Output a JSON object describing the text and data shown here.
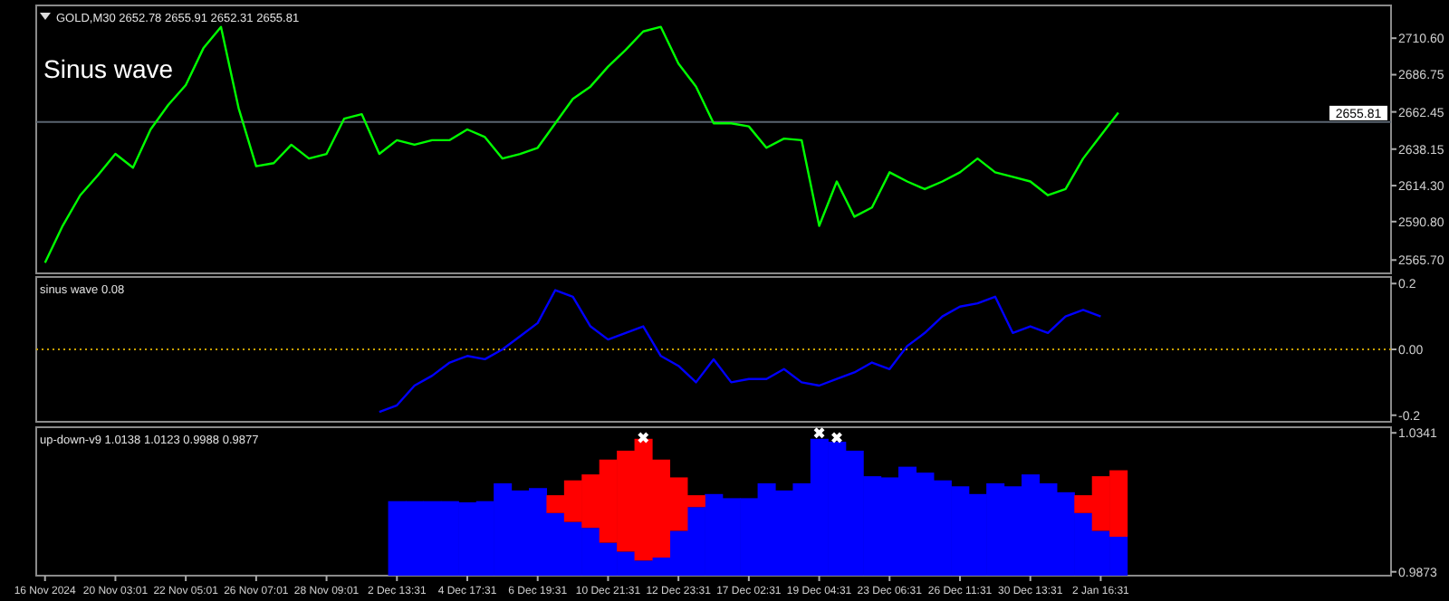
{
  "chart_data": [
    {
      "type": "line",
      "title": "GOLD,M30 2652.78 2655.91 2652.31 2655.81",
      "annotations": [
        "Sinus wave"
      ],
      "tick_labels": "y",
      "categories": [
        null,
        null,
        null,
        null,
        null,
        null,
        null,
        null,
        null,
        null,
        null,
        null,
        null,
        null,
        null,
        null,
        null,
        null,
        null,
        null,
        null,
        null,
        null,
        null,
        null,
        null,
        null,
        null,
        null,
        null,
        null,
        null,
        null,
        null,
        null,
        null,
        null,
        null,
        null,
        null,
        null,
        null,
        null,
        null,
        null,
        null,
        null,
        null,
        null,
        null,
        null,
        null,
        null,
        null,
        null,
        null,
        null,
        null,
        null,
        null,
        null,
        null,
        null,
        null,
        null,
        null,
        null,
        null,
        null,
        null,
        null,
        null,
        null,
        null,
        null,
        null,
        null
      ],
      "series": [
        {
          "color": "#00ff00",
          "values": [
            2564,
            2588,
            2608,
            2621,
            2635,
            2626,
            2651,
            2667,
            2680,
            2704,
            2718,
            2665,
            2627,
            2629,
            2641,
            2632,
            2635,
            2658,
            2661,
            2635,
            2644,
            2641,
            2644,
            2644,
            2651,
            2646,
            2632,
            2635,
            2639,
            2655,
            2671,
            2679,
            2692,
            2703,
            2715,
            2718,
            2694,
            2679,
            2655,
            2655,
            2653,
            2639,
            2645,
            2644,
            2588,
            2617,
            2594,
            2600,
            2623,
            2617,
            2612,
            2617,
            2623,
            2632,
            2623,
            2620,
            2617,
            2608,
            2612,
            2632,
            2647,
            2662,
            null,
            null,
            null,
            null,
            null,
            null,
            null,
            null,
            null,
            null,
            null,
            null,
            null,
            null,
            null
          ]
        }
      ],
      "ylim": [
        2557,
        2732
      ],
      "yticks": [
        {
          "value": 2710.6,
          "label": "2710.60"
        },
        {
          "value": 2686.75,
          "label": "2686.75"
        },
        {
          "value": 2662.45,
          "label": "2662.45"
        },
        {
          "value": 2638.15,
          "label": "2638.15"
        },
        {
          "value": 2614.3,
          "label": "2614.30"
        },
        {
          "value": 2590.8,
          "label": "2590.80"
        },
        {
          "value": 2565.7,
          "label": "2565.70"
        }
      ],
      "ref_lines": [
        {
          "axis": "y",
          "value": 2655.81,
          "label": "2655.81",
          "color": "#5a6470"
        }
      ]
    },
    {
      "type": "line",
      "title": "sinus wave 0.08",
      "tick_labels": "y",
      "categories": [
        null,
        null,
        null,
        null,
        null,
        null,
        null,
        null,
        null,
        null,
        null,
        null,
        null,
        null,
        null,
        null,
        null,
        null,
        null,
        null,
        null,
        null,
        null,
        null,
        null,
        null,
        null,
        null,
        null,
        null,
        null,
        null,
        null,
        null,
        null,
        null,
        null,
        null,
        null,
        null,
        null,
        null,
        null,
        null,
        null,
        null,
        null,
        null,
        null,
        null,
        null,
        null,
        null,
        null,
        null,
        null,
        null,
        null,
        null,
        null,
        null,
        null,
        null,
        null,
        null,
        null,
        null,
        null,
        null,
        null,
        null,
        null,
        null,
        null,
        null,
        null,
        null
      ],
      "series": [
        {
          "color": "#0000ff",
          "values": [
            null,
            null,
            null,
            null,
            null,
            null,
            null,
            null,
            null,
            null,
            null,
            null,
            null,
            null,
            null,
            null,
            null,
            null,
            null,
            -0.19,
            -0.17,
            -0.11,
            -0.08,
            -0.04,
            -0.02,
            -0.03,
            0.0,
            0.04,
            0.08,
            0.18,
            0.16,
            0.07,
            0.03,
            0.05,
            0.07,
            -0.02,
            -0.05,
            -0.1,
            -0.03,
            -0.1,
            -0.09,
            -0.09,
            -0.06,
            -0.1,
            -0.11,
            -0.09,
            -0.07,
            -0.04,
            -0.06,
            0.01,
            0.05,
            0.1,
            0.13,
            0.14,
            0.16,
            0.05,
            0.07,
            0.05,
            0.1,
            0.12,
            0.1,
            null,
            null,
            null,
            null,
            null,
            null,
            null,
            null,
            null,
            null,
            null,
            null,
            null,
            null,
            null,
            null
          ]
        }
      ],
      "ylim": [
        -0.22,
        0.22
      ],
      "yticks": [
        0.2,
        {
          "value": 0,
          "label": "0.00"
        },
        -0.2
      ],
      "ref_lines": [
        {
          "axis": "y",
          "value": 0,
          "color": "#c8a000",
          "line_style": "dotted"
        }
      ]
    },
    {
      "type": "bar",
      "title": "up-down-v9 1.0138 1.0123 0.9988 0.9877",
      "categories": [
        "16 Nov 2024",
        null,
        null,
        null,
        "20 Nov 03:01",
        null,
        null,
        null,
        "22 Nov 05:01",
        null,
        null,
        null,
        "26 Nov 07:01",
        null,
        null,
        null,
        "28 Nov 09:01",
        null,
        null,
        null,
        "2 Dec 13:31",
        null,
        null,
        null,
        "4 Dec 17:31",
        null,
        null,
        null,
        "6 Dec 19:31",
        null,
        null,
        null,
        "10 Dec 21:31",
        null,
        null,
        null,
        "12 Dec 23:31",
        null,
        null,
        null,
        "17 Dec 02:31",
        null,
        null,
        null,
        "19 Dec 04:31",
        null,
        null,
        null,
        "23 Dec 06:31",
        null,
        null,
        null,
        "26 Dec 11:31",
        null,
        null,
        null,
        "30 Dec 13:31",
        null,
        null,
        null,
        "2 Jan 16:31",
        null,
        null,
        null,
        null,
        null,
        null,
        null,
        null,
        null,
        null,
        null,
        null,
        null,
        null,
        null,
        null
      ],
      "series": [
        {
          "color": "#0000ff",
          "values": [
            null,
            null,
            null,
            null,
            null,
            null,
            null,
            null,
            null,
            null,
            null,
            null,
            null,
            null,
            null,
            null,
            null,
            null,
            null,
            null,
            1.0111,
            1.0111,
            1.0111,
            1.0111,
            1.0107,
            1.0111,
            1.0171,
            1.0147,
            1.0155,
            1.0071,
            1.0041,
            1.0021,
            0.9971,
            0.9941,
            0.9911,
            0.9921,
            1.0011,
            1.0091,
            1.0135,
            1.0121,
            1.0121,
            1.0171,
            1.0147,
            1.0171,
            1.0321,
            1.0311,
            1.0281,
            1.0195,
            1.0191,
            1.0227,
            1.0207,
            1.0181,
            1.0161,
            1.0135,
            1.0171,
            1.0161,
            1.0201,
            1.0171,
            1.0141,
            1.0071,
            1.0011,
            0.9991,
            null,
            null,
            null,
            null,
            null,
            null,
            null,
            null,
            null,
            null,
            null,
            null,
            null,
            null,
            null
          ]
        },
        {
          "color": "#ff0000",
          "values": [
            null,
            null,
            null,
            null,
            null,
            null,
            null,
            null,
            null,
            null,
            null,
            null,
            null,
            null,
            null,
            null,
            null,
            null,
            null,
            null,
            null,
            null,
            null,
            null,
            null,
            null,
            null,
            null,
            null,
            0.006,
            0.014,
            0.018,
            0.028,
            0.034,
            0.041,
            0.033,
            0.018,
            0.004,
            null,
            null,
            null,
            null,
            null,
            null,
            null,
            null,
            null,
            null,
            null,
            null,
            null,
            null,
            null,
            null,
            null,
            null,
            null,
            null,
            null,
            0.006,
            0.0184,
            0.0224,
            null,
            null,
            null,
            null,
            null,
            null,
            null,
            null,
            null,
            null,
            null,
            null,
            null,
            null,
            null
          ],
          "base": [
            null,
            null,
            null,
            null,
            null,
            null,
            null,
            null,
            null,
            null,
            null,
            null,
            null,
            null,
            null,
            null,
            null,
            null,
            null,
            null,
            null,
            null,
            null,
            null,
            null,
            null,
            null,
            null,
            null,
            1.0071,
            1.0041,
            1.0021,
            0.9971,
            0.9941,
            0.9911,
            0.9921,
            1.0011,
            1.0091,
            null,
            null,
            null,
            null,
            null,
            null,
            null,
            null,
            null,
            null,
            null,
            null,
            null,
            null,
            null,
            null,
            null,
            null,
            null,
            null,
            null,
            1.0071,
            1.0011,
            0.9991,
            null,
            null,
            null,
            null,
            null,
            null,
            null,
            null,
            null,
            null,
            null,
            null,
            null,
            null,
            null
          ]
        },
        {
          "type": "scatter",
          "color": "#ffffff",
          "marker": "cross",
          "values": [
            null,
            null,
            null,
            null,
            null,
            null,
            null,
            null,
            null,
            null,
            null,
            null,
            null,
            null,
            null,
            null,
            null,
            null,
            null,
            null,
            null,
            null,
            null,
            null,
            null,
            null,
            null,
            null,
            null,
            null,
            null,
            null,
            null,
            null,
            1.0325,
            null,
            null,
            null,
            null,
            null,
            null,
            null,
            null,
            null,
            1.0341,
            1.0325,
            null,
            null,
            null,
            null,
            null,
            null,
            null,
            null,
            null,
            null,
            null,
            null,
            null,
            null,
            null,
            null,
            null,
            null,
            null,
            null,
            null,
            null,
            null,
            null,
            null,
            null,
            null,
            null,
            null,
            null,
            null
          ]
        }
      ],
      "ylim": [
        0.986,
        1.036
      ],
      "yticks": [
        1.0341,
        0.9873
      ]
    }
  ]
}
